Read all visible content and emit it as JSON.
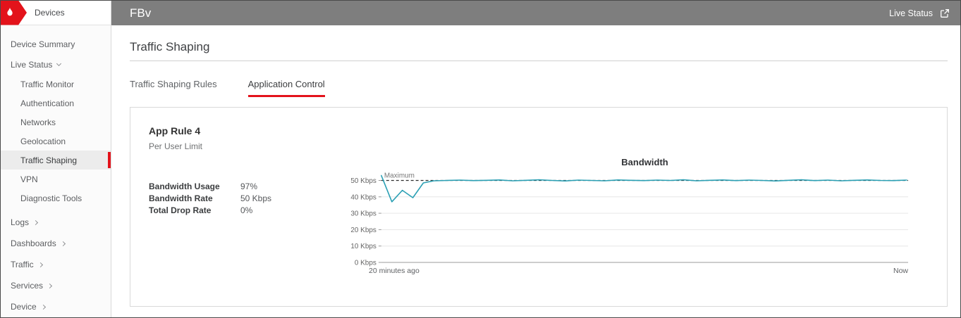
{
  "colors": {
    "accent_red": "#e3131b",
    "topbar_gray": "#7e7e7e",
    "line_teal": "#2ba0b4",
    "grid_gray": "#e6e6e6",
    "axis_gray": "#9b9b9b"
  },
  "sidebar": {
    "header": {
      "label": "Devices"
    },
    "items": [
      {
        "label": "Device Summary",
        "level": "top",
        "active": false
      },
      {
        "label": "Live Status",
        "level": "group",
        "expanded": true,
        "active": false
      },
      {
        "label": "Traffic Monitor",
        "level": "child",
        "active": false
      },
      {
        "label": "Authentication",
        "level": "child",
        "active": false
      },
      {
        "label": "Networks",
        "level": "child",
        "active": false
      },
      {
        "label": "Geolocation",
        "level": "child",
        "active": false
      },
      {
        "label": "Traffic Shaping",
        "level": "child",
        "active": true
      },
      {
        "label": "VPN",
        "level": "child",
        "active": false
      },
      {
        "label": "Diagnostic Tools",
        "level": "child",
        "active": false
      },
      {
        "label": "Logs",
        "level": "section",
        "collapsed": true
      },
      {
        "label": "Dashboards",
        "level": "section",
        "collapsed": true
      },
      {
        "label": "Traffic",
        "level": "section",
        "collapsed": true
      },
      {
        "label": "Services",
        "level": "section",
        "collapsed": true
      },
      {
        "label": "Device",
        "level": "section",
        "collapsed": true
      }
    ]
  },
  "topbar": {
    "title": "FBv",
    "live_status_label": "Live Status"
  },
  "page": {
    "title": "Traffic Shaping",
    "tabs": [
      {
        "label": "Traffic Shaping Rules",
        "active": false
      },
      {
        "label": "Application Control",
        "active": true
      }
    ]
  },
  "card": {
    "rule_name": "App Rule 4",
    "rule_subtitle": "Per User Limit",
    "stats": [
      {
        "label": "Bandwidth Usage",
        "value": "97%"
      },
      {
        "label": "Bandwidth Rate",
        "value": "50 Kbps"
      },
      {
        "label": "Total Drop Rate",
        "value": "0%"
      }
    ]
  },
  "chart_data": {
    "type": "line",
    "title": "Bandwidth",
    "xlabel": "",
    "ylabel": "Kbps",
    "ylim": [
      0,
      55
    ],
    "x_range_minutes": 20,
    "x_axis_labels": {
      "left": "20 minutes ago",
      "right": "Now"
    },
    "y_ticks": [
      {
        "value": 0,
        "label": "0 Kbps"
      },
      {
        "value": 10,
        "label": "10 Kbps"
      },
      {
        "value": 20,
        "label": "20 Kbps"
      },
      {
        "value": 30,
        "label": "30 Kbps"
      },
      {
        "value": 40,
        "label": "40 Kbps"
      },
      {
        "value": 50,
        "label": "50 Kbps"
      }
    ],
    "max_line": {
      "label": "Maximum",
      "value": 50
    },
    "line_color": "#2ba0b4",
    "grid": true,
    "legend": false,
    "series": [
      {
        "name": "Bandwidth",
        "x_minutes_ago": [
          20,
          19.6,
          19.2,
          18.8,
          18.4,
          18,
          17.5,
          17,
          16.5,
          16,
          15.5,
          15,
          14.5,
          14,
          13.5,
          13,
          12.5,
          12,
          11.5,
          11,
          10.5,
          10,
          9.5,
          9,
          8.5,
          8,
          7.5,
          7,
          6.5,
          6,
          5.5,
          5,
          4.5,
          4,
          3.5,
          3,
          2.5,
          2,
          1.5,
          1,
          0.5,
          0
        ],
        "values": [
          53,
          37,
          44,
          39.5,
          48.5,
          49.8,
          50,
          50.2,
          49.9,
          50.1,
          50.3,
          49.8,
          50.1,
          50.4,
          50,
          49.7,
          50.2,
          50,
          49.8,
          50.3,
          50.1,
          49.9,
          50.2,
          50,
          50.4,
          49.8,
          50.1,
          50.3,
          49.9,
          50.2,
          50,
          49.7,
          50.1,
          50.4,
          49.9,
          50.2,
          49.8,
          50.1,
          50.3,
          50,
          49.9,
          50.2
        ]
      }
    ]
  }
}
